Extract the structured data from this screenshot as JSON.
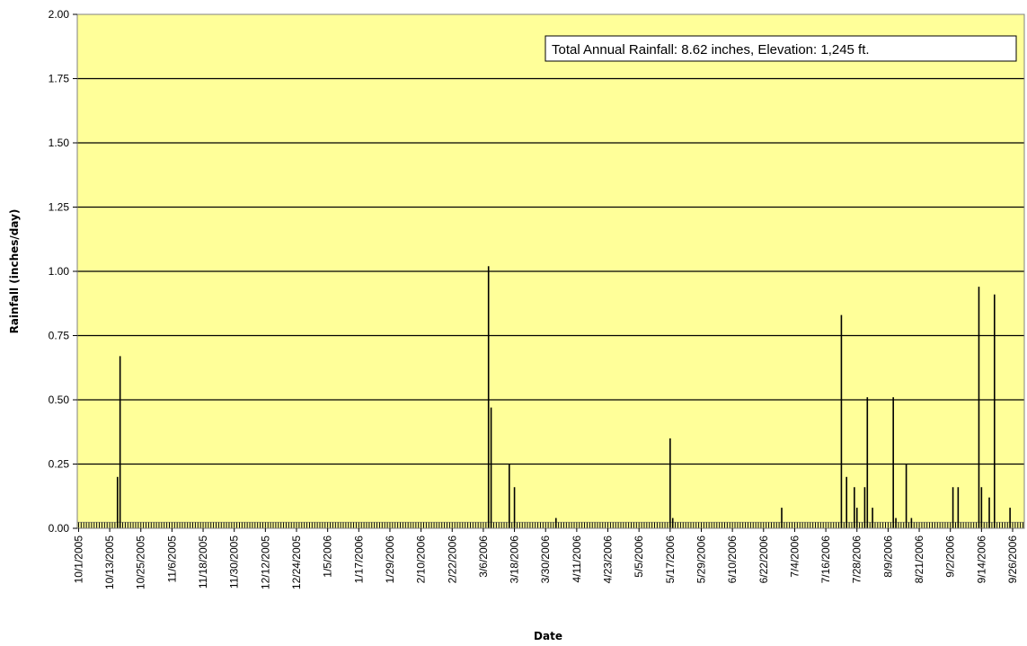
{
  "chart_data": {
    "type": "bar",
    "xlabel": "Date",
    "ylabel": "Rainfall (inches/day)",
    "annotation": "Total Annual Rainfall: 8.62 inches,  Elevation: 1,245 ft.",
    "x_start": "10/1/2005",
    "x_end": "9/30/2006",
    "ylim": [
      0,
      2.0
    ],
    "yticks": [
      "0.00",
      "0.25",
      "0.50",
      "0.75",
      "1.00",
      "1.25",
      "1.50",
      "1.75",
      "2.00"
    ],
    "xticks": [
      "10/1/2005",
      "10/13/2005",
      "10/25/2005",
      "11/6/2005",
      "11/18/2005",
      "11/30/2005",
      "12/12/2005",
      "12/24/2005",
      "1/5/2006",
      "1/17/2006",
      "1/29/2006",
      "2/10/2006",
      "2/22/2006",
      "3/6/2006",
      "3/18/2006",
      "3/30/2006",
      "4/11/2006",
      "4/23/2006",
      "5/5/2006",
      "5/17/2006",
      "5/29/2006",
      "6/10/2006",
      "6/22/2006",
      "7/4/2006",
      "7/16/2006",
      "7/28/2006",
      "8/9/2006",
      "8/21/2006",
      "9/2/2006",
      "9/14/2006",
      "9/26/2006"
    ],
    "baseline_value": 0.01,
    "grid": true,
    "plot_background": "#ffff99",
    "bar_color": "#000000",
    "values": [
      {
        "date": "10/16/2005",
        "value": 0.2
      },
      {
        "date": "10/17/2005",
        "value": 0.67
      },
      {
        "date": "3/8/2006",
        "value": 1.02
      },
      {
        "date": "3/9/2006",
        "value": 0.47
      },
      {
        "date": "3/16/2006",
        "value": 0.25
      },
      {
        "date": "3/18/2006",
        "value": 0.16
      },
      {
        "date": "4/3/2006",
        "value": 0.04
      },
      {
        "date": "5/17/2006",
        "value": 0.35
      },
      {
        "date": "5/18/2006",
        "value": 0.04
      },
      {
        "date": "6/29/2006",
        "value": 0.08
      },
      {
        "date": "7/22/2006",
        "value": 0.83
      },
      {
        "date": "7/24/2006",
        "value": 0.2
      },
      {
        "date": "7/27/2006",
        "value": 0.16
      },
      {
        "date": "7/28/2006",
        "value": 0.08
      },
      {
        "date": "7/31/2006",
        "value": 0.16
      },
      {
        "date": "8/1/2006",
        "value": 0.51
      },
      {
        "date": "8/3/2006",
        "value": 0.08
      },
      {
        "date": "8/11/2006",
        "value": 0.51
      },
      {
        "date": "8/12/2006",
        "value": 0.04
      },
      {
        "date": "8/16/2006",
        "value": 0.25
      },
      {
        "date": "8/18/2006",
        "value": 0.04
      },
      {
        "date": "9/3/2006",
        "value": 0.16
      },
      {
        "date": "9/5/2006",
        "value": 0.16
      },
      {
        "date": "9/13/2006",
        "value": 0.94
      },
      {
        "date": "9/14/2006",
        "value": 0.16
      },
      {
        "date": "9/17/2006",
        "value": 0.12
      },
      {
        "date": "9/19/2006",
        "value": 0.91
      },
      {
        "date": "9/25/2006",
        "value": 0.08
      }
    ]
  }
}
